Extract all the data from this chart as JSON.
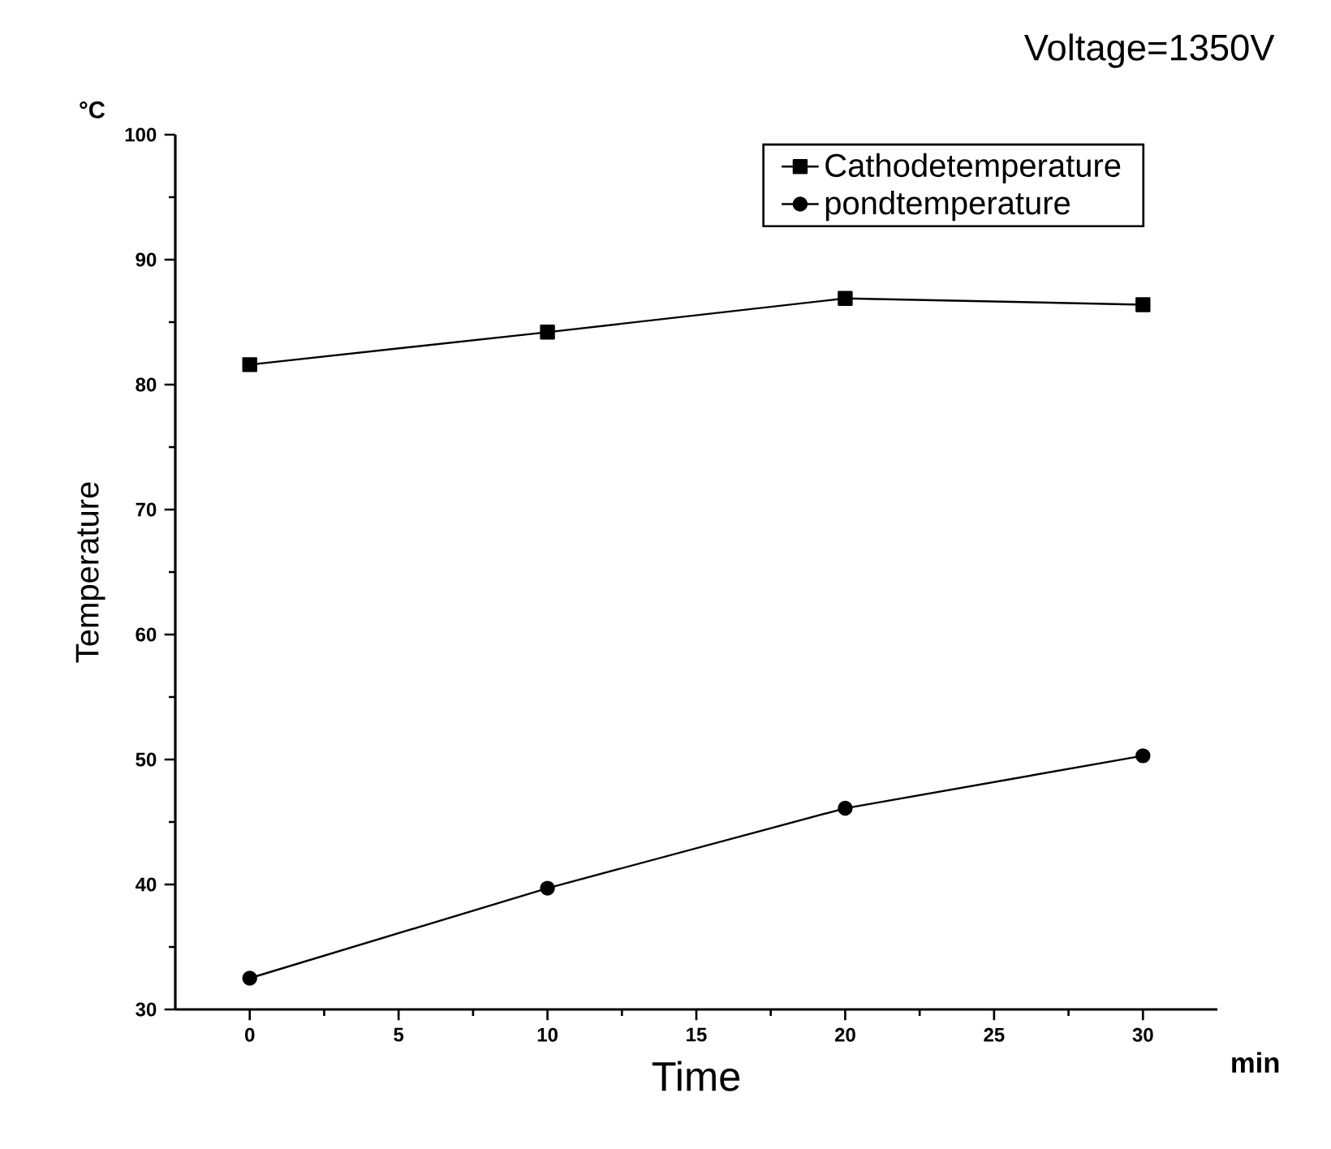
{
  "chart_data": {
    "type": "line",
    "title": "Voltage=1350V",
    "xlabel": "Time",
    "ylabel": "Temperature",
    "annotations": [
      "°C",
      "min"
    ],
    "x": [
      0,
      10,
      20,
      30
    ],
    "series": [
      {
        "name": "Cathodetemperature",
        "color": "#000000",
        "marker": "square",
        "values": [
          81.6,
          84.2,
          86.9,
          86.4
        ]
      },
      {
        "name": "pondtemperature",
        "color": "#000000",
        "marker": "circle",
        "values": [
          32.5,
          39.7,
          46.1,
          50.3
        ]
      }
    ],
    "xlim": [
      -2.5,
      32.5
    ],
    "ylim": [
      30,
      100
    ],
    "xticks": [
      0,
      5,
      10,
      15,
      20,
      25,
      30
    ],
    "yticks": [
      30,
      40,
      50,
      60,
      70,
      80,
      90,
      100
    ],
    "grid": false,
    "legend": "top right",
    "line_style": "solid"
  }
}
